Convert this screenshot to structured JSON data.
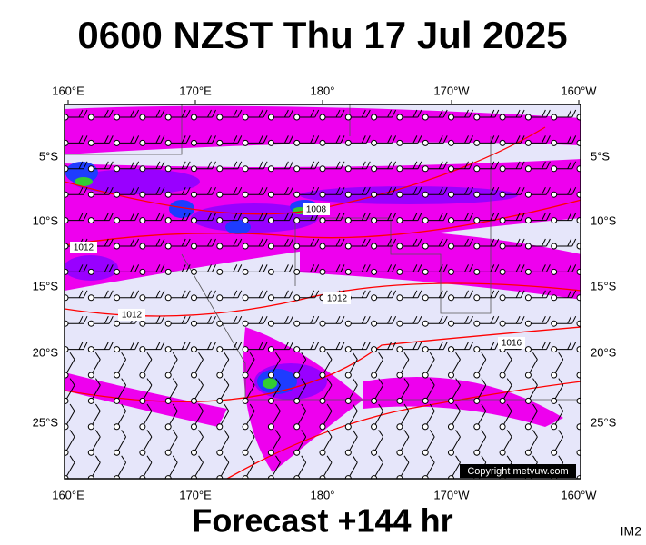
{
  "header": {
    "title": "0600 NZST Thu 17 Jul 2025"
  },
  "map": {
    "lon_labels": [
      "160°E",
      "170°E",
      "180°",
      "170°W",
      "160°W"
    ],
    "lat_labels": [
      "5°S",
      "10°S",
      "15°S",
      "20°S",
      "25°S"
    ],
    "isobar_labels": [
      "1008",
      "1012",
      "1012",
      "1012",
      "1016"
    ],
    "copyright": "Copyright metvuw.com"
  },
  "footer": {
    "forecast": "Forecast +144 hr",
    "id": "IM2"
  }
}
